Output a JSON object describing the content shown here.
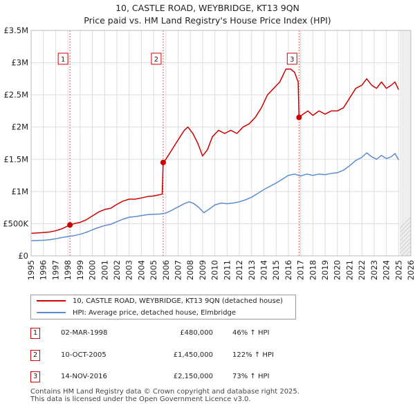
{
  "chart_data": {
    "type": "line",
    "title": "10, CASTLE ROAD, WEYBRIDGE, KT13 9QN",
    "subtitle": "Price paid vs. HM Land Registry's House Price Index (HPI)",
    "xlim": [
      1995,
      2026
    ],
    "ylim": [
      0,
      3500000
    ],
    "x_ticks": [
      1995,
      1996,
      1997,
      1998,
      1999,
      2000,
      2001,
      2002,
      2003,
      2004,
      2005,
      2006,
      2007,
      2008,
      2009,
      2010,
      2011,
      2012,
      2013,
      2014,
      2015,
      2016,
      2017,
      2018,
      2019,
      2020,
      2021,
      2022,
      2023,
      2024,
      2025,
      2026
    ],
    "x_tick_labels": [
      "1995",
      "1996",
      "1997",
      "1998",
      "1999",
      "2000",
      "2001",
      "2002",
      "2003",
      "2004",
      "2005",
      "2006",
      "2007",
      "2008",
      "2009",
      "2010",
      "2011",
      "2012",
      "2013",
      "2014",
      "2015",
      "2016",
      "2017",
      "2018",
      "2019",
      "2020",
      "2021",
      "2022",
      "2023",
      "2024",
      "2025",
      "2026"
    ],
    "y_ticks": [
      0,
      500000,
      1000000,
      1500000,
      2000000,
      2500000,
      3000000,
      3500000
    ],
    "y_tick_labels": [
      "£0",
      "£500K",
      "£1M",
      "£1.5M",
      "£2M",
      "£2.5M",
      "£3M",
      "£3.5M"
    ],
    "grid": true,
    "shaded_future_from": 2025.1,
    "series": [
      {
        "name": "10, CASTLE ROAD, WEYBRIDGE, KT13 9QN (detached house)",
        "color": "#cc0000",
        "points": [
          [
            1995,
            350000
          ],
          [
            1995.5,
            355000
          ],
          [
            1996,
            362000
          ],
          [
            1996.5,
            370000
          ],
          [
            1997,
            390000
          ],
          [
            1997.5,
            420000
          ],
          [
            1998.17,
            480000
          ],
          [
            1998.6,
            505000
          ],
          [
            1999,
            520000
          ],
          [
            1999.5,
            560000
          ],
          [
            2000,
            620000
          ],
          [
            2000.5,
            680000
          ],
          [
            2001,
            720000
          ],
          [
            2001.5,
            740000
          ],
          [
            2002,
            800000
          ],
          [
            2002.5,
            850000
          ],
          [
            2003,
            880000
          ],
          [
            2003.5,
            880000
          ],
          [
            2004,
            900000
          ],
          [
            2004.5,
            920000
          ],
          [
            2005,
            930000
          ],
          [
            2005.5,
            950000
          ],
          [
            2005.7,
            960000
          ],
          [
            2005.78,
            1450000
          ],
          [
            2006,
            1500000
          ],
          [
            2006.5,
            1650000
          ],
          [
            2007,
            1800000
          ],
          [
            2007.5,
            1950000
          ],
          [
            2007.8,
            2000000
          ],
          [
            2008.2,
            1900000
          ],
          [
            2008.6,
            1750000
          ],
          [
            2009,
            1550000
          ],
          [
            2009.4,
            1650000
          ],
          [
            2009.8,
            1850000
          ],
          [
            2010.3,
            1950000
          ],
          [
            2010.8,
            1900000
          ],
          [
            2011.3,
            1950000
          ],
          [
            2011.8,
            1900000
          ],
          [
            2012.3,
            2000000
          ],
          [
            2012.8,
            2050000
          ],
          [
            2013.3,
            2150000
          ],
          [
            2013.8,
            2300000
          ],
          [
            2014.3,
            2500000
          ],
          [
            2014.8,
            2600000
          ],
          [
            2015.3,
            2700000
          ],
          [
            2015.8,
            2900000
          ],
          [
            2016.2,
            2900000
          ],
          [
            2016.5,
            2850000
          ],
          [
            2016.8,
            2700000
          ],
          [
            2016.87,
            2150000
          ],
          [
            2017.2,
            2200000
          ],
          [
            2017.6,
            2250000
          ],
          [
            2018,
            2180000
          ],
          [
            2018.5,
            2250000
          ],
          [
            2019,
            2200000
          ],
          [
            2019.5,
            2250000
          ],
          [
            2020,
            2250000
          ],
          [
            2020.5,
            2300000
          ],
          [
            2021,
            2450000
          ],
          [
            2021.5,
            2600000
          ],
          [
            2022,
            2650000
          ],
          [
            2022.4,
            2750000
          ],
          [
            2022.8,
            2650000
          ],
          [
            2023.2,
            2600000
          ],
          [
            2023.6,
            2700000
          ],
          [
            2024,
            2600000
          ],
          [
            2024.4,
            2650000
          ],
          [
            2024.7,
            2700000
          ],
          [
            2025,
            2580000
          ]
        ]
      },
      {
        "name": "HPI: Average price, detached house, Elmbridge",
        "color": "#5b8bd0",
        "points": [
          [
            1995,
            235000
          ],
          [
            1995.5,
            238000
          ],
          [
            1996,
            243000
          ],
          [
            1996.5,
            250000
          ],
          [
            1997,
            265000
          ],
          [
            1997.5,
            285000
          ],
          [
            1998,
            300000
          ],
          [
            1998.5,
            315000
          ],
          [
            1999,
            335000
          ],
          [
            1999.5,
            365000
          ],
          [
            2000,
            405000
          ],
          [
            2000.5,
            440000
          ],
          [
            2001,
            470000
          ],
          [
            2001.5,
            490000
          ],
          [
            2002,
            530000
          ],
          [
            2002.5,
            570000
          ],
          [
            2003,
            600000
          ],
          [
            2003.5,
            610000
          ],
          [
            2004,
            625000
          ],
          [
            2004.5,
            640000
          ],
          [
            2005,
            645000
          ],
          [
            2005.5,
            650000
          ],
          [
            2006,
            665000
          ],
          [
            2006.5,
            710000
          ],
          [
            2007,
            760000
          ],
          [
            2007.5,
            810000
          ],
          [
            2007.9,
            840000
          ],
          [
            2008.3,
            810000
          ],
          [
            2008.7,
            750000
          ],
          [
            2009.1,
            670000
          ],
          [
            2009.5,
            720000
          ],
          [
            2010,
            790000
          ],
          [
            2010.5,
            820000
          ],
          [
            2011,
            810000
          ],
          [
            2011.5,
            820000
          ],
          [
            2012,
            840000
          ],
          [
            2012.5,
            870000
          ],
          [
            2013,
            910000
          ],
          [
            2013.5,
            970000
          ],
          [
            2014,
            1030000
          ],
          [
            2014.5,
            1080000
          ],
          [
            2015,
            1130000
          ],
          [
            2015.5,
            1190000
          ],
          [
            2016,
            1250000
          ],
          [
            2016.5,
            1270000
          ],
          [
            2017,
            1240000
          ],
          [
            2017.5,
            1270000
          ],
          [
            2018,
            1250000
          ],
          [
            2018.5,
            1270000
          ],
          [
            2019,
            1260000
          ],
          [
            2019.5,
            1280000
          ],
          [
            2020,
            1290000
          ],
          [
            2020.5,
            1330000
          ],
          [
            2021,
            1400000
          ],
          [
            2021.5,
            1480000
          ],
          [
            2022,
            1530000
          ],
          [
            2022.4,
            1600000
          ],
          [
            2022.8,
            1540000
          ],
          [
            2023.2,
            1500000
          ],
          [
            2023.6,
            1560000
          ],
          [
            2024,
            1510000
          ],
          [
            2024.4,
            1540000
          ],
          [
            2024.7,
            1590000
          ],
          [
            2025,
            1490000
          ]
        ]
      }
    ],
    "sales": [
      {
        "label": "1",
        "x": 1998.17,
        "y": 480000
      },
      {
        "label": "2",
        "x": 2005.78,
        "y": 1450000
      },
      {
        "label": "3",
        "x": 2016.87,
        "y": 2150000
      }
    ],
    "sale_label_y": 3050000
  },
  "legend": {
    "items": [
      {
        "label": "10, CASTLE ROAD, WEYBRIDGE, KT13 9QN (detached house)",
        "color": "#cc0000"
      },
      {
        "label": "HPI: Average price, detached house, Elmbridge",
        "color": "#5b8bd0"
      }
    ]
  },
  "transactions": [
    {
      "num": "1",
      "date": "02-MAR-1998",
      "price": "£480,000",
      "hpi": "46% ↑ HPI"
    },
    {
      "num": "2",
      "date": "10-OCT-2005",
      "price": "£1,450,000",
      "hpi": "122% ↑ HPI"
    },
    {
      "num": "3",
      "date": "14-NOV-2016",
      "price": "£2,150,000",
      "hpi": "73% ↑ HPI"
    }
  ],
  "footer": {
    "line1": "Contains HM Land Registry data © Crown copyright and database right 2025.",
    "line2": "This data is licensed under the Open Government Licence v3.0."
  }
}
